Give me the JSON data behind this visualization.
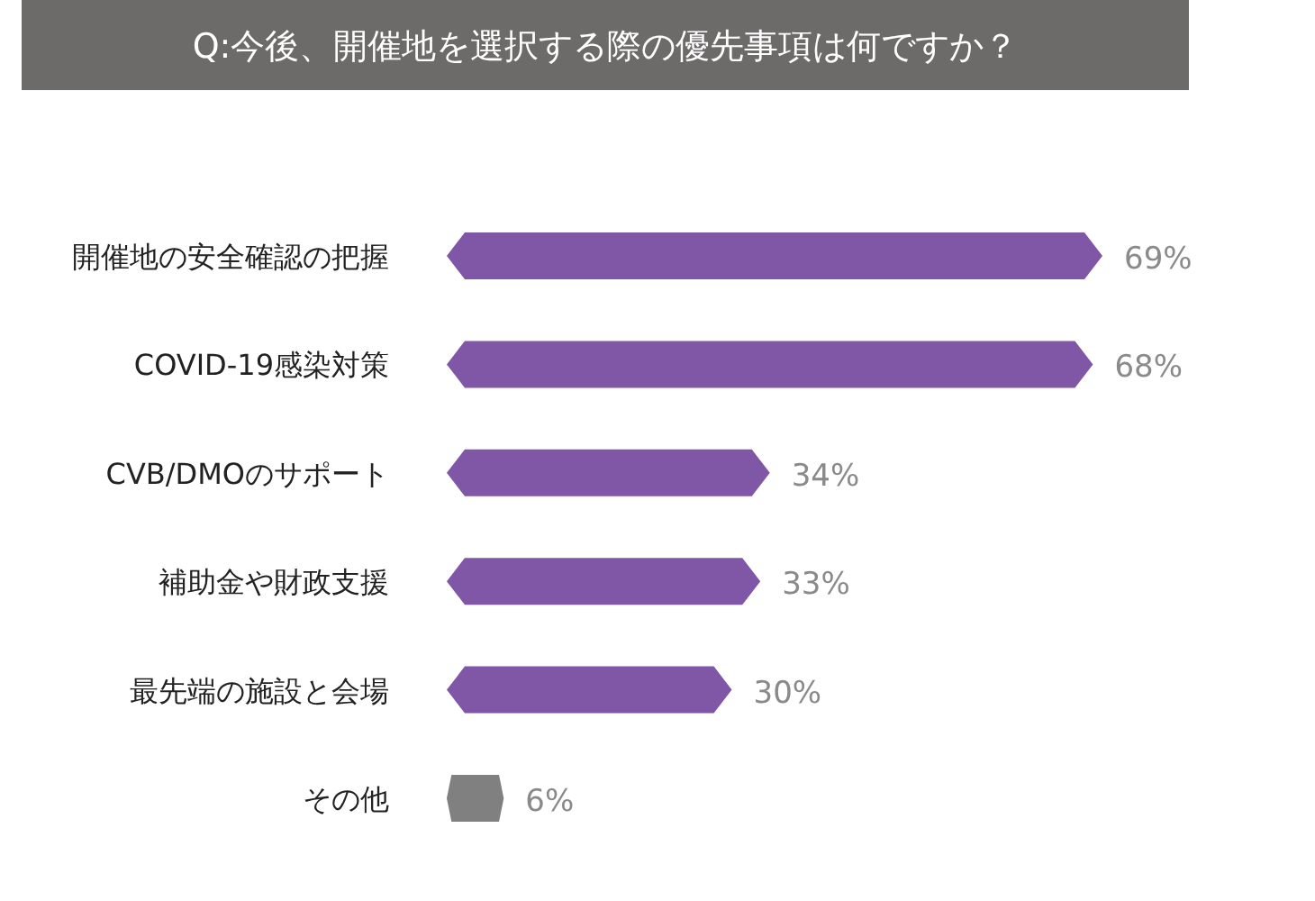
{
  "chart_data": {
    "type": "bar",
    "orientation": "horizontal",
    "title": "Q:今後、開催地を選択する際の優先事項は何ですか？",
    "categories": [
      "開催地の安全確認の把握",
      "COVID-19感染対策",
      "CVB/DMOのサポート",
      "補助金や財政支援",
      "最先端の施設と会場",
      "その他"
    ],
    "values": [
      69,
      68,
      34,
      33,
      30,
      6
    ],
    "colors": [
      "#7f57a6",
      "#7f57a6",
      "#7f57a6",
      "#7f57a6",
      "#7f57a6",
      "#808080"
    ],
    "value_labels": [
      "69%",
      "68%",
      "34%",
      "33%",
      "30%",
      "6%"
    ],
    "tick_labels": "y"
  }
}
